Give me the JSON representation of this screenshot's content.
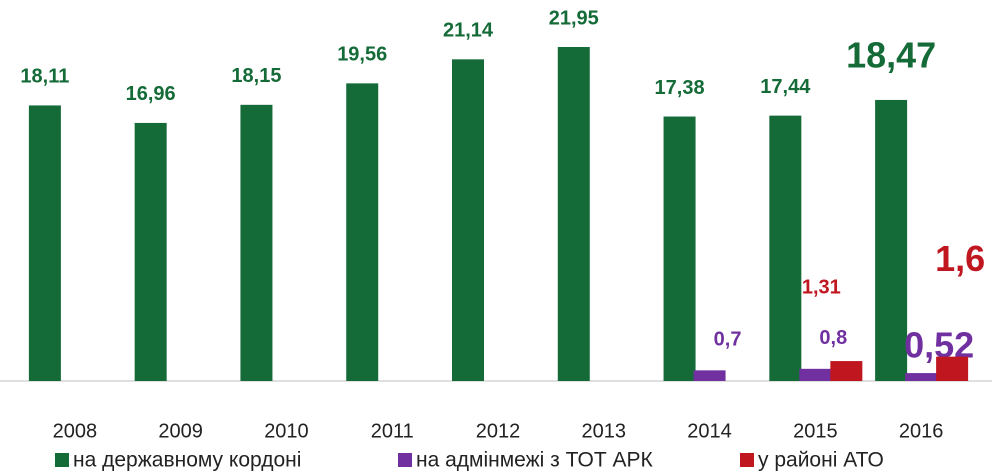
{
  "chart_data": {
    "type": "bar",
    "categories": [
      "2008",
      "2009",
      "2010",
      "2011",
      "2012",
      "2013",
      "2014",
      "2015",
      "2016"
    ],
    "series": [
      {
        "name": "на державному кордоні",
        "color": "#156b38",
        "values": [
          18.11,
          16.96,
          18.15,
          19.56,
          21.14,
          21.95,
          17.38,
          17.44,
          18.47
        ],
        "value_labels": [
          "18,11",
          "16,96",
          "18,15",
          "19,56",
          "21,14",
          "21,95",
          "17,38",
          "17,44",
          "18,47"
        ]
      },
      {
        "name": "на адмінмежі з ТОТ АРК",
        "color": "#7030a0",
        "values": [
          null,
          null,
          null,
          null,
          null,
          null,
          0.7,
          0.8,
          0.52
        ],
        "value_labels": [
          null,
          null,
          null,
          null,
          null,
          null,
          "0,7",
          "0,8",
          "0,52"
        ]
      },
      {
        "name": "у районі АТО",
        "color": "#c0161f",
        "values": [
          null,
          null,
          null,
          null,
          null,
          null,
          null,
          1.31,
          1.6
        ],
        "value_labels": [
          null,
          null,
          null,
          null,
          null,
          null,
          null,
          "1,31",
          "1,6"
        ]
      }
    ],
    "legend": "bottom"
  }
}
